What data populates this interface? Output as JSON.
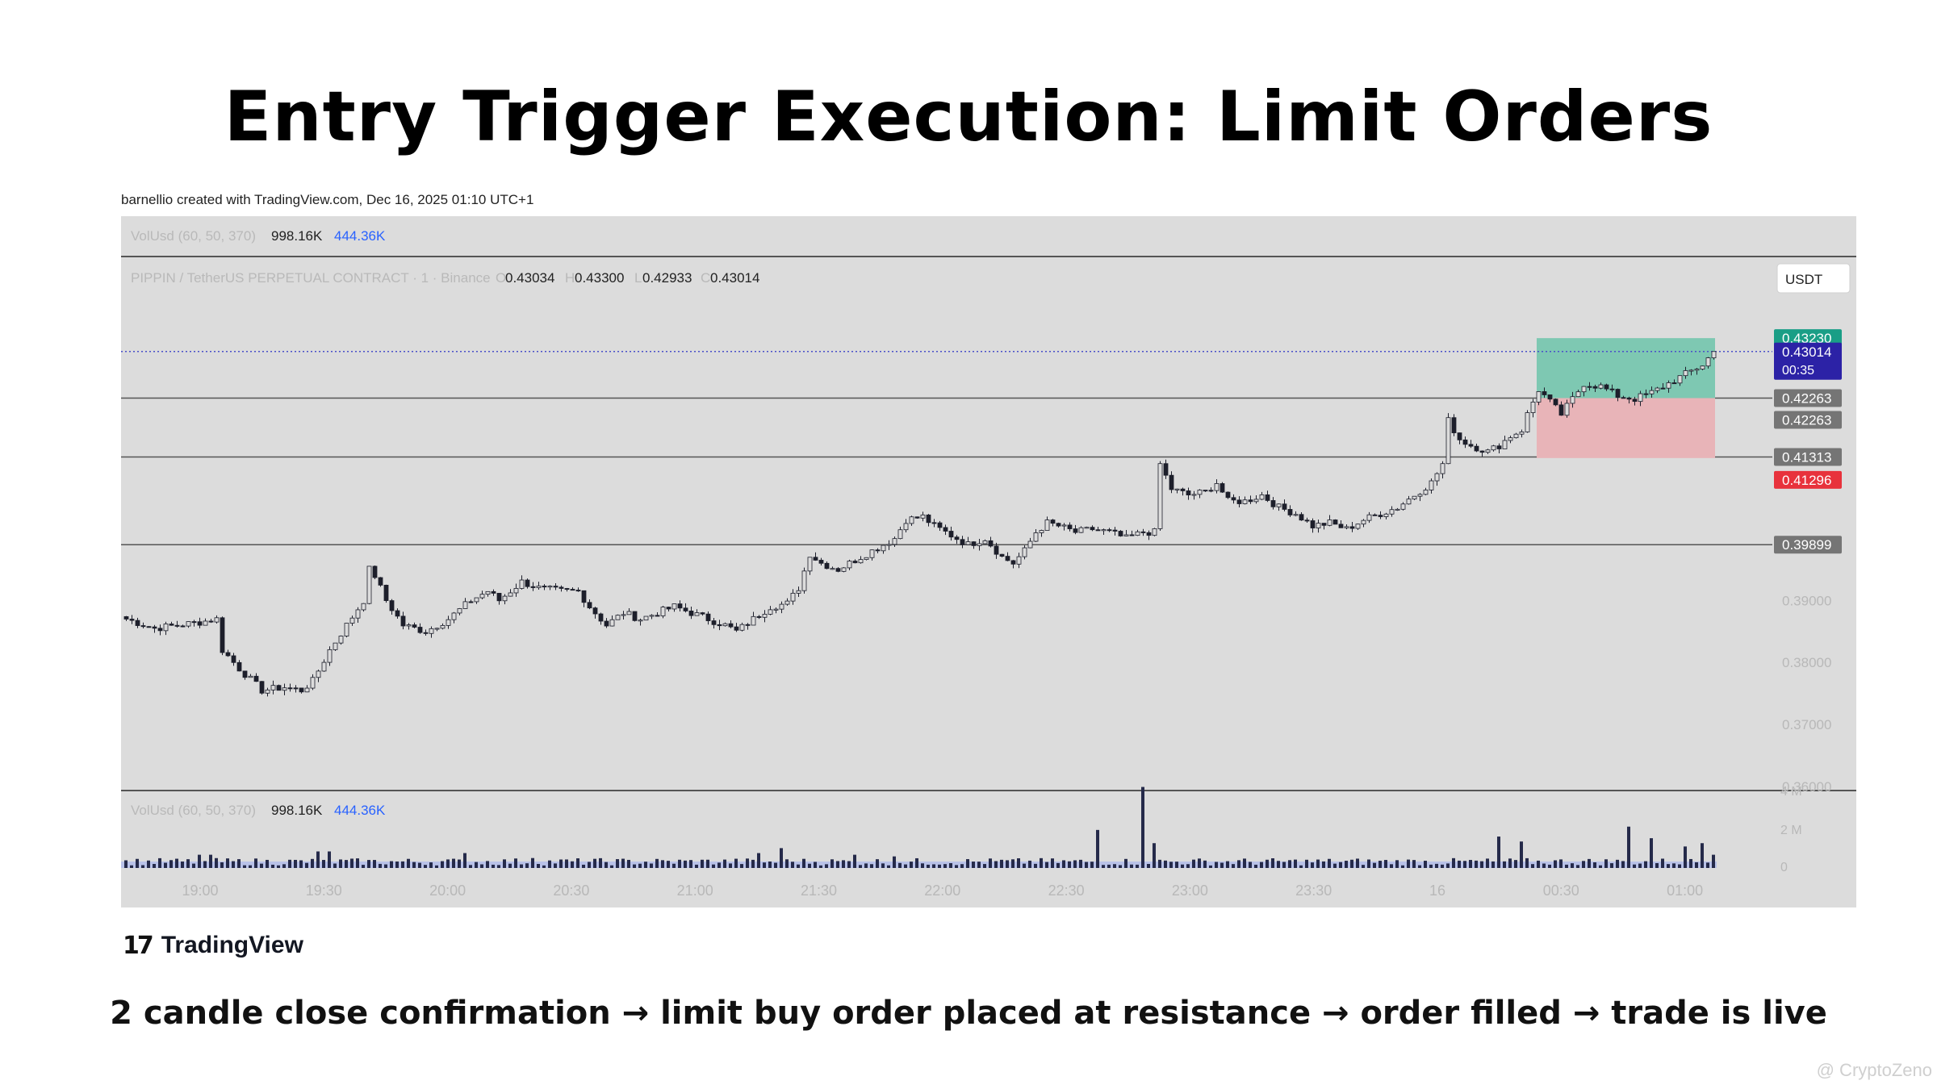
{
  "title": "Entry Trigger Execution: Limit Orders",
  "credit": "barnellio created with TradingView.com, Dec 16, 2025 01:10 UTC+1",
  "caption": "2 candle close confirmation → limit buy order placed at resistance → order filled → trade is live",
  "watermark": "@ CryptoZeno",
  "logo": {
    "mark": "17",
    "text": "TradingView"
  },
  "colors": {
    "panel_bg": "#dcdcdc",
    "candle": "#1d1f2b",
    "take_profit_zone": "#7ec8b2",
    "stop_zone": "#e8b4b8",
    "volume_bar": "#252a4a",
    "volume_ma": "#b9c2e8",
    "tp_tag": "#1a9e86",
    "price_tag": "#2c22a6",
    "level_tag": "#757575",
    "stop_tag": "#e8323c",
    "level_line": "#555555",
    "vol_highlight": "#2962ff"
  },
  "chart_data": {
    "type": "candlestick",
    "symbol_line": {
      "name": "PIPPIN / TetherUS PERPETUAL CONTRACT · 1 · Binance",
      "ohlc": [
        {
          "k": "O",
          "v": "0.43034"
        },
        {
          "k": "H",
          "v": "0.43300"
        },
        {
          "k": "L",
          "v": "0.42933"
        },
        {
          "k": "C",
          "v": "0.43014"
        }
      ]
    },
    "currency_button": "USDT",
    "volume_legend": {
      "name": "VolUsd (60, 50, 370)",
      "v1": "998.16K",
      "v2": "444.36K"
    },
    "x_labels": [
      "19:00",
      "19:30",
      "20:00",
      "20:30",
      "21:00",
      "21:30",
      "22:00",
      "22:30",
      "23:00",
      "23:30",
      "16",
      "00:30",
      "01:00"
    ],
    "y_labels": [
      "0.39000",
      "0.38000",
      "0.37000",
      "0.36000"
    ],
    "y_range": [
      0.3596,
      0.4452
    ],
    "volume_labels": [
      "4 M",
      "2 M",
      "0"
    ],
    "horizontal_levels": [
      0.42263,
      0.41313,
      0.39899
    ],
    "current_price": 0.43014,
    "countdown": "00:35",
    "position": {
      "entry": 0.42263,
      "target": 0.4323,
      "stop": 0.41296
    },
    "price_tags": [
      {
        "label": "0.43230",
        "value": 0.4323,
        "kind": "tp"
      },
      {
        "label": "0.43014",
        "value": 0.43014,
        "kind": "price",
        "sub": "00:35"
      },
      {
        "label": "0.42263",
        "value": 0.42263,
        "kind": "level"
      },
      {
        "label": "0.42263",
        "value": 0.42263,
        "kind": "level",
        "offset": 1
      },
      {
        "label": "0.41313",
        "value": 0.41313,
        "kind": "level"
      },
      {
        "label": "0.41296",
        "value": 0.41296,
        "kind": "stop",
        "offset": 1
      },
      {
        "label": "0.39899",
        "value": 0.39899,
        "kind": "level"
      }
    ],
    "price_path": [
      [
        0,
        0.387
      ],
      [
        5,
        0.3855
      ],
      [
        9,
        0.386
      ],
      [
        13,
        0.3865
      ],
      [
        16,
        0.387
      ],
      [
        17,
        0.382
      ],
      [
        20,
        0.379
      ],
      [
        24,
        0.3755
      ],
      [
        28,
        0.376
      ],
      [
        31,
        0.3755
      ],
      [
        33,
        0.377
      ],
      [
        36,
        0.382
      ],
      [
        39,
        0.386
      ],
      [
        42,
        0.39
      ],
      [
        43,
        0.395
      ],
      [
        44,
        0.394
      ],
      [
        46,
        0.39
      ],
      [
        49,
        0.386
      ],
      [
        53,
        0.385
      ],
      [
        57,
        0.387
      ],
      [
        61,
        0.39
      ],
      [
        64,
        0.3915
      ],
      [
        66,
        0.39
      ],
      [
        70,
        0.393
      ],
      [
        73,
        0.392
      ],
      [
        77,
        0.3915
      ],
      [
        80,
        0.3915
      ],
      [
        82,
        0.389
      ],
      [
        85,
        0.386
      ],
      [
        88,
        0.388
      ],
      [
        91,
        0.387
      ],
      [
        94,
        0.388
      ],
      [
        97,
        0.389
      ],
      [
        100,
        0.388
      ],
      [
        103,
        0.387
      ],
      [
        106,
        0.386
      ],
      [
        108,
        0.385
      ],
      [
        111,
        0.387
      ],
      [
        114,
        0.389
      ],
      [
        117,
        0.3895
      ],
      [
        119,
        0.392
      ],
      [
        121,
        0.3975
      ],
      [
        123,
        0.396
      ],
      [
        126,
        0.395
      ],
      [
        130,
        0.397
      ],
      [
        133,
        0.3985
      ],
      [
        136,
        0.4
      ],
      [
        138,
        0.403
      ],
      [
        141,
        0.4035
      ],
      [
        143,
        0.402
      ],
      [
        146,
        0.4005
      ],
      [
        149,
        0.399
      ],
      [
        152,
        0.4
      ],
      [
        155,
        0.397
      ],
      [
        157,
        0.396
      ],
      [
        159,
        0.398
      ],
      [
        161,
        0.401
      ],
      [
        163,
        0.4025
      ],
      [
        165,
        0.402
      ],
      [
        168,
        0.401
      ],
      [
        171,
        0.4015
      ],
      [
        174,
        0.401
      ],
      [
        177,
        0.4
      ],
      [
        180,
        0.401
      ],
      [
        182,
        0.401
      ],
      [
        183,
        0.412
      ],
      [
        185,
        0.408
      ],
      [
        188,
        0.407
      ],
      [
        191,
        0.4075
      ],
      [
        193,
        0.409
      ],
      [
        195,
        0.406
      ],
      [
        198,
        0.406
      ],
      [
        201,
        0.407
      ],
      [
        204,
        0.405
      ],
      [
        207,
        0.404
      ],
      [
        210,
        0.402
      ],
      [
        213,
        0.4025
      ],
      [
        216,
        0.4015
      ],
      [
        219,
        0.403
      ],
      [
        222,
        0.404
      ],
      [
        225,
        0.405
      ],
      [
        228,
        0.407
      ],
      [
        231,
        0.409
      ],
      [
        233,
        0.412
      ],
      [
        234,
        0.419
      ],
      [
        236,
        0.416
      ],
      [
        238,
        0.415
      ],
      [
        241,
        0.414
      ],
      [
        243,
        0.415
      ],
      [
        245,
        0.4165
      ],
      [
        247,
        0.4175
      ],
      [
        248,
        0.42
      ],
      [
        249,
        0.422
      ],
      [
        250,
        0.424
      ],
      [
        252,
        0.422
      ],
      [
        254,
        0.42
      ],
      [
        256,
        0.4225
      ],
      [
        258,
        0.425
      ],
      [
        261,
        0.4245
      ],
      [
        264,
        0.423
      ],
      [
        267,
        0.4225
      ],
      [
        270,
        0.4235
      ],
      [
        273,
        0.425
      ],
      [
        276,
        0.4265
      ],
      [
        279,
        0.428
      ],
      [
        281,
        0.4301
      ]
    ],
    "volume_spikes": [
      [
        13,
        0.8
      ],
      [
        15,
        0.8
      ],
      [
        34,
        1.0
      ],
      [
        36,
        1.0
      ],
      [
        60,
        0.9
      ],
      [
        72,
        0.6
      ],
      [
        112,
        0.9
      ],
      [
        116,
        1.2
      ],
      [
        129,
        0.8
      ],
      [
        136,
        0.7
      ],
      [
        172,
        2.3
      ],
      [
        180,
        4.9
      ],
      [
        182,
        1.5
      ],
      [
        243,
        1.9
      ],
      [
        247,
        1.6
      ],
      [
        266,
        2.5
      ],
      [
        270,
        1.8
      ],
      [
        276,
        1.3
      ],
      [
        279,
        1.5
      ],
      [
        281,
        0.8
      ]
    ]
  }
}
